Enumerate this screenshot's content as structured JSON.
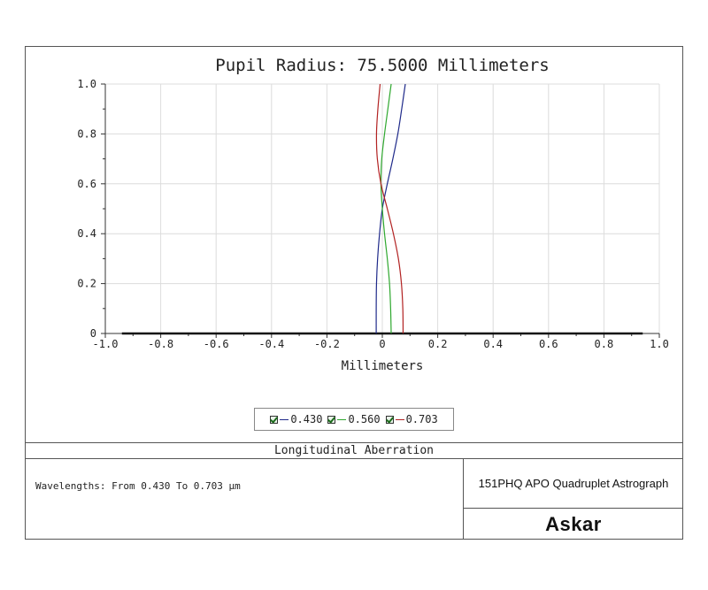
{
  "chart_data": {
    "type": "line",
    "title": "Pupil Radius: 75.5000 Millimeters",
    "xlabel": "Millimeters",
    "ylabel": "",
    "xlim": [
      -1.0,
      1.0
    ],
    "ylim": [
      0,
      1.0
    ],
    "xticks": [
      "-1.0",
      "-0.8",
      "-0.6",
      "-0.4",
      "-0.2",
      "0",
      "0.2",
      "0.4",
      "0.6",
      "0.8",
      "1.0"
    ],
    "yticks": [
      "0",
      "0.2",
      "0.4",
      "0.6",
      "0.8",
      "1.0"
    ],
    "grid": true,
    "series": [
      {
        "name": "0.430",
        "color": "#1f2a8a",
        "x": [
          -0.022,
          -0.022,
          -0.021,
          -0.017,
          -0.01,
          0.0,
          0.018,
          0.038,
          0.056,
          0.07,
          0.083
        ],
        "y": [
          0,
          0.1,
          0.2,
          0.3,
          0.4,
          0.5,
          0.6,
          0.7,
          0.8,
          0.9,
          1.0
        ]
      },
      {
        "name": "0.560",
        "color": "#2fa82f",
        "x": [
          0.032,
          0.03,
          0.026,
          0.018,
          0.008,
          0.0,
          -0.005,
          -0.002,
          0.008,
          0.02,
          0.032
        ],
        "y": [
          0,
          0.1,
          0.2,
          0.3,
          0.4,
          0.5,
          0.6,
          0.7,
          0.8,
          0.9,
          1.0
        ]
      },
      {
        "name": "0.703",
        "color": "#b22222",
        "x": [
          0.075,
          0.074,
          0.069,
          0.058,
          0.04,
          0.018,
          -0.005,
          -0.018,
          -0.021,
          -0.016,
          -0.008
        ],
        "y": [
          0,
          0.1,
          0.2,
          0.3,
          0.4,
          0.5,
          0.6,
          0.7,
          0.8,
          0.9,
          1.0
        ]
      }
    ],
    "legend_placement": "bottom-center"
  },
  "legend": {
    "items": [
      {
        "label": "0.430"
      },
      {
        "label": "0.560"
      },
      {
        "label": "0.703"
      }
    ]
  },
  "footer": {
    "caption": "Longitudinal Aberration",
    "wavelengths": "Wavelengths: From 0.430 To 0.703 µm",
    "product": "151PHQ APO Quadruplet Astrograph",
    "brand": "Askar"
  }
}
